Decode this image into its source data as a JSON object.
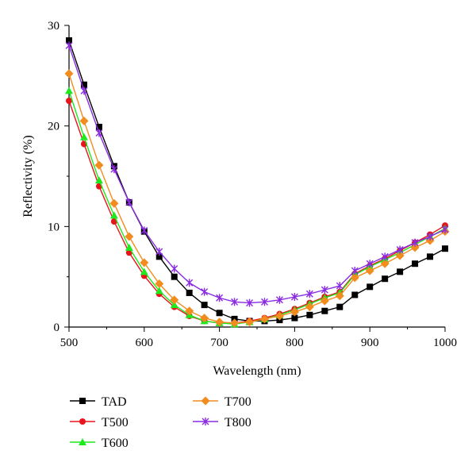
{
  "chart_data": {
    "type": "line",
    "xlabel": "Wavelength (nm)",
    "ylabel": "Reflectivity (%)",
    "xlim": [
      500,
      1000
    ],
    "ylim": [
      0,
      30
    ],
    "xticks": [
      500,
      600,
      700,
      800,
      900,
      1000
    ],
    "yticks": [
      0,
      10,
      20,
      30
    ],
    "grid": false,
    "legend_position": "bottom-left",
    "x": [
      500,
      520,
      540,
      560,
      580,
      600,
      620,
      640,
      660,
      680,
      700,
      720,
      740,
      760,
      780,
      800,
      820,
      840,
      860,
      880,
      900,
      920,
      940,
      960,
      980,
      1000
    ],
    "series": [
      {
        "name": "TAD",
        "color": "#000000",
        "marker": "square",
        "values": [
          28.5,
          24.1,
          19.9,
          16.0,
          12.4,
          9.5,
          7.0,
          5.0,
          3.4,
          2.2,
          1.4,
          0.8,
          0.6,
          0.6,
          0.7,
          0.9,
          1.2,
          1.6,
          2.0,
          3.2,
          4.0,
          4.8,
          5.5,
          6.3,
          7.0,
          7.8
        ]
      },
      {
        "name": "T500",
        "color": "#e8141c",
        "marker": "circle",
        "values": [
          22.5,
          18.2,
          14.0,
          10.5,
          7.4,
          5.1,
          3.3,
          2.0,
          1.1,
          0.6,
          0.4,
          0.4,
          0.6,
          0.9,
          1.3,
          1.8,
          2.4,
          3.0,
          3.5,
          5.3,
          6.1,
          6.8,
          7.6,
          8.4,
          9.2,
          10.1
        ]
      },
      {
        "name": "T600",
        "color": "#1ee81e",
        "marker": "triangle",
        "values": [
          23.5,
          18.9,
          14.6,
          11.1,
          7.9,
          5.5,
          3.6,
          2.2,
          1.2,
          0.6,
          0.4,
          0.3,
          0.5,
          0.8,
          1.2,
          1.7,
          2.3,
          2.9,
          3.4,
          5.2,
          6.0,
          6.7,
          7.4,
          8.2,
          9.0,
          9.8
        ]
      },
      {
        "name": "T700",
        "color": "#f28c1e",
        "marker": "diamond",
        "values": [
          25.2,
          20.5,
          16.1,
          12.3,
          9.0,
          6.4,
          4.3,
          2.7,
          1.6,
          0.9,
          0.5,
          0.4,
          0.5,
          0.8,
          1.1,
          1.5,
          2.0,
          2.6,
          3.1,
          4.9,
          5.6,
          6.3,
          7.1,
          7.9,
          8.6,
          9.5
        ]
      },
      {
        "name": "T800",
        "color": "#8a2be2",
        "marker": "star",
        "values": [
          28.0,
          23.5,
          19.3,
          15.7,
          12.4,
          9.6,
          7.5,
          5.8,
          4.4,
          3.5,
          2.9,
          2.5,
          2.4,
          2.5,
          2.7,
          3.0,
          3.3,
          3.7,
          4.1,
          5.6,
          6.3,
          7.0,
          7.7,
          8.4,
          9.0,
          9.7
        ]
      }
    ]
  }
}
